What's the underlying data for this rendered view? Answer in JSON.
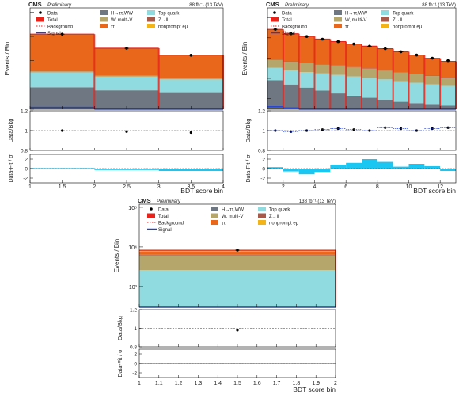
{
  "charts": [
    {
      "experiment": "CMS",
      "status": "Preliminary",
      "lumi": "​88 fb⁻¹ (13 TeV)",
      "ylabel_main": "Events / Bin",
      "ylabel_ratio": "Data/Bkg",
      "ylabel_pull": "Data-Fit / σ",
      "xlabel": "BDT score bin",
      "xlim": [
        1,
        4
      ],
      "xticks": [
        "1",
        "1.5",
        "2",
        "2.5",
        "3",
        "3.5",
        "4"
      ],
      "xtick_values": [
        1,
        1.5,
        2,
        2.5,
        3,
        3.5,
        4
      ],
      "ylim_log": [
        100,
        1500000
      ],
      "ratio_ylim": [
        0.8,
        1.2
      ],
      "ratio_ticks": [
        "0.8",
        "1",
        "1.2"
      ],
      "pull_ylim": [
        -3,
        3
      ],
      "pull_ticks": [
        "-2",
        "0",
        "2"
      ]
    },
    {
      "experiment": "CMS",
      "status": "Preliminary",
      "lumi": "88 fb⁻¹ (13 TeV)",
      "ylabel_main": "Events / Bin",
      "ylabel_ratio": "Data/Bkg",
      "ylabel_pull": "Data-Fit / σ",
      "xlabel": "BDT score bin",
      "xlim": [
        1,
        13
      ],
      "xticks": [
        "2",
        "4",
        "6",
        "8",
        "10",
        "12"
      ],
      "xtick_values": [
        2,
        4,
        6,
        8,
        10,
        12
      ],
      "ylim_log": [
        30,
        3000000
      ],
      "ratio_ylim": [
        0.8,
        1.2
      ],
      "ratio_ticks": [
        "0.8",
        "1",
        "1.2"
      ],
      "pull_ylim": [
        -3,
        3
      ],
      "pull_ticks": [
        "-2",
        "0",
        "2"
      ]
    },
    {
      "experiment": "CMS",
      "status": "Preliminary",
      "lumi": "138 fb⁻¹ (13 TeV)",
      "ylabel_main": "Events / Bin",
      "ylabel_ratio": "Data/Bkg",
      "ylabel_pull": "Data-Fit / σ",
      "xlabel": "BDT score bin",
      "xlim": [
        1,
        2
      ],
      "xticks": [
        "1",
        "1.1",
        "1.2",
        "1.3",
        "1.4",
        "1.5",
        "1.6",
        "1.7",
        "1.8",
        "1.9",
        "2"
      ],
      "xtick_values": [
        1,
        1.1,
        1.2,
        1.3,
        1.4,
        1.5,
        1.6,
        1.7,
        1.8,
        1.9,
        2
      ],
      "yticks": [
        "10³",
        "10⁴",
        "10⁵"
      ],
      "ytick_values": [
        1000,
        10000,
        100000
      ],
      "ylim_log": [
        300,
        120000
      ],
      "ratio_ylim": [
        0.8,
        1.2
      ],
      "ratio_ticks": [
        "0.8",
        "1",
        "1.2"
      ],
      "pull_ylim": [
        -3,
        3
      ],
      "pull_ticks": [
        "-2",
        "0",
        "2"
      ]
    }
  ],
  "legend": {
    "items": [
      {
        "label": "Data",
        "style": "marker",
        "color": "#000000"
      },
      {
        "label": "H→ττ,WW",
        "style": "fill",
        "color": "#6e7782"
      },
      {
        "label": "Top quark",
        "style": "fill",
        "color": "#8fdbe0"
      },
      {
        "label": "Total",
        "style": "fill",
        "color": "#e8231c"
      },
      {
        "label": "W, multi-V",
        "style": "fill",
        "color": "#b5a76c"
      },
      {
        "label": "Z→ll",
        "style": "fill",
        "color": "#a85a4a"
      },
      {
        "label": "Background",
        "style": "dash",
        "color": "#e02020"
      },
      {
        "label": "ττ",
        "style": "fill",
        "color": "#e8671a"
      },
      {
        "label": "nonprompt eμ",
        "style": "fill",
        "color": "#f2b416"
      },
      {
        "label": "Signal",
        "style": "line",
        "color": "#1f3fd9"
      }
    ]
  },
  "colors": {
    "higgs": "#6e7782",
    "top": "#8fdbe0",
    "wv": "#b5a76c",
    "ztoll": "#a85a4a",
    "tautau": "#e8671a",
    "nonprompt": "#f2b416",
    "total": "#e8231c",
    "signal": "#1f3fd9",
    "pull": "#19c7f2"
  },
  "chart_data": [
    {
      "type": "bar",
      "stacked": true,
      "scale": "log",
      "bin_edges": [
        1,
        2,
        3,
        4
      ],
      "series": [
        {
          "name": "H→ττ,WW",
          "values": [
            800,
            600,
            500
          ]
        },
        {
          "name": "Top quark",
          "values": [
            2500,
            1600,
            1200
          ]
        },
        {
          "name": "W, multi-V",
          "values": [
            300,
            200,
            150
          ]
        },
        {
          "name": "Z→ll",
          "values": [
            60,
            40,
            30
          ]
        },
        {
          "name": "ττ",
          "values": [
            120000,
            30000,
            15000
          ]
        },
        {
          "name": "nonprompt eμ",
          "values": [
            200,
            150,
            120
          ]
        }
      ],
      "signal": [
        120,
        90,
        70
      ],
      "data": {
        "x": [
          1.5,
          2.5,
          3.5
        ],
        "y": [
          124000,
          32500,
          16800
        ]
      },
      "ratio": {
        "x": [
          1.5,
          2.5,
          3.5
        ],
        "y": [
          1.0,
          0.99,
          0.98
        ]
      },
      "pull": [
        0.1,
        -0.3,
        -0.5
      ]
    },
    {
      "type": "bar",
      "stacked": true,
      "scale": "log",
      "bin_edges": [
        1,
        2,
        3,
        4,
        5,
        6,
        7,
        8,
        9,
        10,
        11,
        12,
        13
      ],
      "series": [
        {
          "name": "H→ττ,WW",
          "values": [
            800,
            500,
            350,
            250,
            180,
            140,
            110,
            90,
            70,
            60,
            50,
            45
          ]
        },
        {
          "name": "Top quark",
          "values": [
            2500,
            2000,
            1700,
            1500,
            1300,
            1100,
            950,
            800,
            650,
            550,
            450,
            380
          ]
        },
        {
          "name": "W, multi-V",
          "values": [
            5000,
            4000,
            3500,
            3000,
            2600,
            2200,
            1900,
            1500,
            1200,
            1000,
            800,
            600
          ]
        },
        {
          "name": "Z→ll",
          "values": [
            500,
            400,
            350,
            300,
            250,
            200,
            180,
            150,
            120,
            100,
            80,
            70
          ]
        },
        {
          "name": "ττ",
          "values": [
            250000,
            150000,
            110000,
            80000,
            60000,
            45000,
            35000,
            26000,
            18000,
            12000,
            8000,
            5500
          ]
        },
        {
          "name": "nonprompt eμ",
          "values": [
            1500,
            1200,
            1000,
            900,
            800,
            700,
            600,
            500,
            450,
            400,
            350,
            300
          ]
        }
      ],
      "signal": [
        40,
        35,
        30,
        28,
        25,
        22,
        20,
        18,
        16,
        14,
        12,
        10
      ],
      "data": {
        "x": [
          1.5,
          2.5,
          3.5,
          4.5,
          5.5,
          6.5,
          7.5,
          8.5,
          9.5,
          10.5,
          11.5,
          12.5
        ],
        "y": [
          262000,
          158000,
          116000,
          86000,
          65000,
          50000,
          39000,
          29000,
          20500,
          14100,
          9900,
          7500
        ]
      },
      "ratio": {
        "x": [
          1.5,
          2.5,
          3.5,
          4.5,
          5.5,
          6.5,
          7.5,
          8.5,
          9.5,
          10.5,
          11.5,
          12.5
        ],
        "y": [
          1.0,
          0.99,
          1.0,
          1.01,
          1.02,
          1.01,
          1.0,
          1.03,
          1.02,
          1.0,
          1.02,
          1.03
        ]
      },
      "pull": [
        0.3,
        -0.6,
        -1.2,
        -0.7,
        0.8,
        1.2,
        2.0,
        1.4,
        0.4,
        1.0,
        0.5,
        -0.5
      ]
    },
    {
      "type": "bar",
      "stacked": true,
      "scale": "log",
      "bin_edges": [
        1,
        2
      ],
      "series": [
        {
          "name": "H→ττ,WW",
          "values": [
            100
          ]
        },
        {
          "name": "Top quark",
          "values": [
            2500
          ]
        },
        {
          "name": "W, multi-V",
          "values": [
            3500
          ]
        },
        {
          "name": "Z→ll",
          "values": [
            250
          ]
        },
        {
          "name": "ττ",
          "values": [
            1200
          ]
        },
        {
          "name": "nonprompt eμ",
          "values": [
            700
          ]
        }
      ],
      "signal": [
        30
      ],
      "data": {
        "x": [
          1.5
        ],
        "y": [
          8300
        ]
      },
      "ratio": {
        "x": [
          1.5
        ],
        "y": [
          0.98
        ]
      },
      "pull": [
        0.0
      ]
    }
  ]
}
